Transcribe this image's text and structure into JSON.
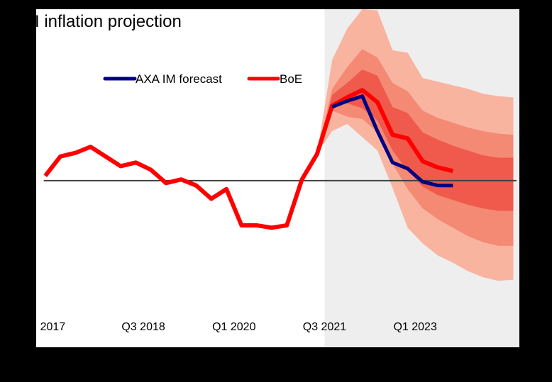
{
  "chart_data": {
    "type": "line",
    "title": "I inflation projection",
    "xlabel": "",
    "ylabel": "",
    "x_tick_labels": [
      {
        "label": "2017",
        "quarter_index": 0
      },
      {
        "label": "Q3 2018",
        "quarter_index": 6
      },
      {
        "label": "Q1 2020",
        "quarter_index": 12
      },
      {
        "label": "Q3 2021",
        "quarter_index": 18
      },
      {
        "label": "Q1 2023",
        "quarter_index": 24
      }
    ],
    "x_range_quarters": [
      -1.1,
      30.9
    ],
    "ylim": [
      -4.9,
      9.1
    ],
    "reference_line": {
      "value": 2.0,
      "color": "#404040"
    },
    "forecast_region_start_quarter": 18,
    "grid": false,
    "legend": {
      "placement": "top-center",
      "entries": [
        {
          "name": "AXA IM forecast",
          "color": "#000080"
        },
        {
          "name": "BoE",
          "color": "#ff0000"
        }
      ]
    },
    "series": [
      {
        "name": "BoE",
        "color": "#ff0000",
        "x": [
          -0.5,
          0.5,
          1.5,
          2.5,
          3.5,
          4.5,
          5.5,
          6.5,
          7.5,
          8.5,
          9.5,
          10.5,
          11.5,
          12.5,
          13.5,
          14.5,
          15.5,
          16.5,
          17.5,
          18.5,
          19.5,
          20.5,
          21.5,
          22.5,
          23.5,
          24.5,
          25.5,
          26.5
        ],
        "values": [
          2.2,
          3.0,
          3.15,
          3.4,
          3.0,
          2.6,
          2.75,
          2.45,
          1.9,
          2.05,
          1.8,
          1.25,
          1.65,
          0.15,
          0.15,
          0.05,
          0.15,
          2.05,
          3.1,
          5.1,
          5.45,
          5.75,
          5.25,
          3.9,
          3.75,
          2.8,
          2.55,
          2.4
        ]
      },
      {
        "name": "AXA IM forecast",
        "color": "#000080",
        "x": [
          18.5,
          19.5,
          20.5,
          21.5,
          22.5,
          23.5,
          24.5,
          25.5,
          26.5
        ],
        "values": [
          5.05,
          5.3,
          5.5,
          4.05,
          2.75,
          2.5,
          1.95,
          1.8,
          1.8
        ]
      }
    ],
    "fan_bands": {
      "x": [
        17.5,
        18.5,
        19.5,
        20.5,
        21.5,
        22.5,
        23.5,
        24.5,
        25.5,
        26.5,
        27.5,
        28.5,
        29.5,
        30.5
      ],
      "colors": [
        "#f9b4a0",
        "#f48a74",
        "#ef5a4c"
      ],
      "outer": {
        "upper": [
          3.1,
          7.0,
          8.3,
          9.1,
          9.05,
          7.4,
          7.3,
          6.25,
          6.1,
          5.95,
          5.8,
          5.6,
          5.5,
          5.45
        ],
        "lower": [
          3.1,
          4.05,
          4.35,
          3.8,
          3.25,
          1.7,
          0.05,
          -0.6,
          -1.1,
          -1.4,
          -1.75,
          -2.0,
          -2.15,
          -2.1
        ]
      },
      "middle": {
        "upper": [
          3.1,
          5.8,
          6.7,
          7.45,
          7.1,
          6.05,
          5.7,
          4.9,
          4.6,
          4.4,
          4.2,
          4.05,
          3.95,
          3.9
        ],
        "lower": [
          3.1,
          4.9,
          4.65,
          4.55,
          4.0,
          2.7,
          1.65,
          0.85,
          0.4,
          0.05,
          -0.3,
          -0.55,
          -0.7,
          -0.7
        ]
      },
      "inner": {
        "upper": [
          3.1,
          5.55,
          6.05,
          6.6,
          6.35,
          5.05,
          4.8,
          4.0,
          3.7,
          3.45,
          3.25,
          3.05,
          2.95,
          2.95
        ],
        "lower": [
          3.1,
          5.1,
          5.2,
          5.0,
          4.5,
          3.25,
          2.4,
          1.75,
          1.4,
          1.2,
          1.0,
          0.85,
          0.75,
          0.75
        ]
      }
    }
  }
}
